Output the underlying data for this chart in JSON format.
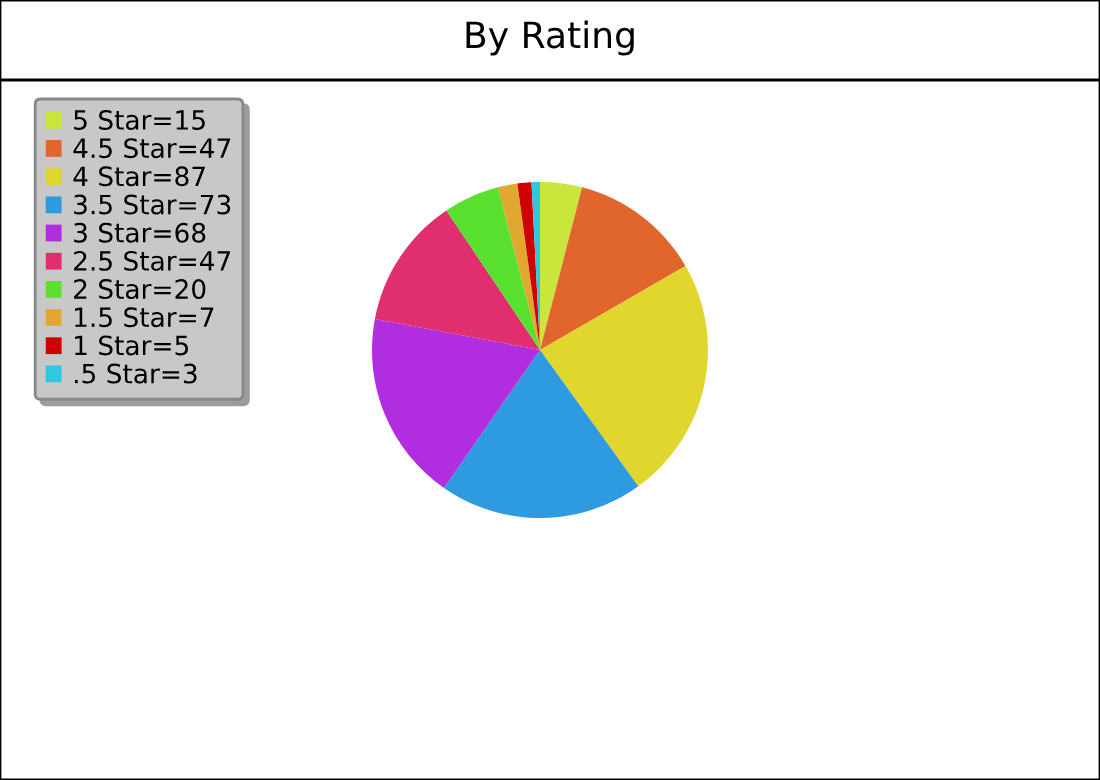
{
  "chart_data": {
    "type": "pie",
    "title": "By Rating",
    "categories": [
      "5 Star=15",
      "4.5 Star=47",
      "4 Star=87",
      "3.5 Star=73",
      "3 Star=68",
      "2.5 Star=47",
      "2 Star=20",
      "1.5 Star=7",
      "1 Star=5",
      ".5 Star=3"
    ],
    "values": [
      15,
      47,
      87,
      73,
      68,
      47,
      20,
      7,
      5,
      3
    ],
    "colors": [
      "#c8e63c",
      "#e0662e",
      "#e0d62e",
      "#2e9ae0",
      "#b02ee0",
      "#e02e6e",
      "#5ae02e",
      "#e0a82e",
      "#d00000",
      "#2ec8e0"
    ],
    "legend": "top left"
  }
}
